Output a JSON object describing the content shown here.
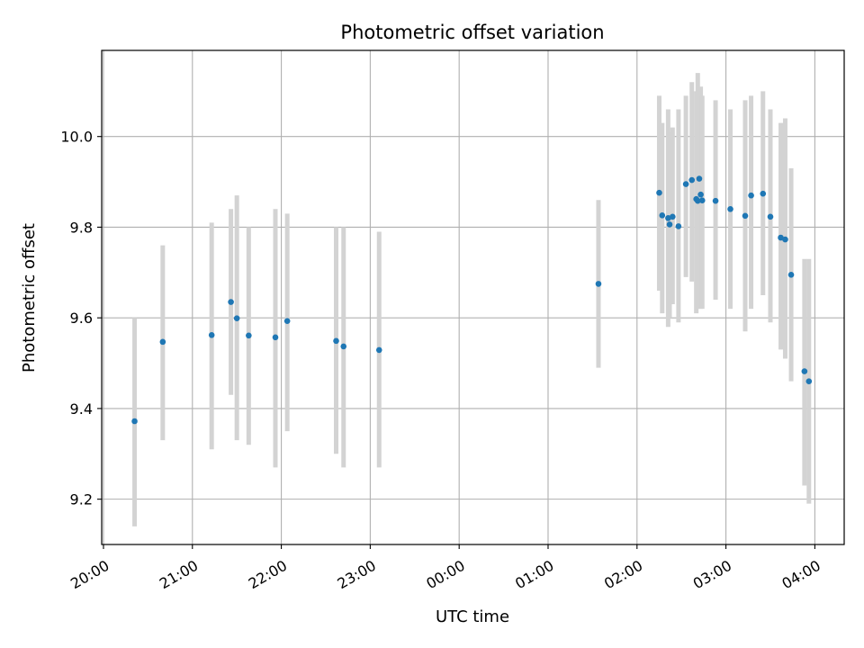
{
  "chart_data": {
    "type": "scatter",
    "title": "Photometric offset variation",
    "xlabel": "UTC time",
    "ylabel": "Photometric offset",
    "grid": true,
    "legend": "none",
    "x_tick_labels": [
      "20:00",
      "21:00",
      "22:00",
      "23:00",
      "00:00",
      "01:00",
      "02:00",
      "03:00",
      "04:00"
    ],
    "x_tick_hours": [
      20,
      21,
      22,
      23,
      24,
      25,
      26,
      27,
      28
    ],
    "xlim_hours": [
      19.98,
      28.33
    ],
    "y_ticks": [
      9.2,
      9.4,
      9.6,
      9.8,
      10.0
    ],
    "y_tick_labels": [
      "9.2",
      "9.4",
      "9.6",
      "9.8",
      "10.0"
    ],
    "ylim": [
      9.1,
      10.19
    ],
    "colors": {
      "points": "#1f77b4",
      "errorbars": "#d3d3d3",
      "grid": "#b0b0b0"
    },
    "points": [
      {
        "t": "20:21",
        "y": 9.372,
        "lo": 9.14,
        "hi": 9.6
      },
      {
        "t": "20:40",
        "y": 9.547,
        "lo": 9.33,
        "hi": 9.76
      },
      {
        "t": "21:13",
        "y": 9.562,
        "lo": 9.31,
        "hi": 9.81
      },
      {
        "t": "21:26",
        "y": 9.635,
        "lo": 9.43,
        "hi": 9.84
      },
      {
        "t": "21:30",
        "y": 9.599,
        "lo": 9.33,
        "hi": 9.87
      },
      {
        "t": "21:38",
        "y": 9.561,
        "lo": 9.32,
        "hi": 9.8
      },
      {
        "t": "21:56",
        "y": 9.557,
        "lo": 9.27,
        "hi": 9.84
      },
      {
        "t": "22:04",
        "y": 9.593,
        "lo": 9.35,
        "hi": 9.83
      },
      {
        "t": "22:37",
        "y": 9.549,
        "lo": 9.3,
        "hi": 9.8
      },
      {
        "t": "22:42",
        "y": 9.537,
        "lo": 9.27,
        "hi": 9.8
      },
      {
        "t": "23:06",
        "y": 9.529,
        "lo": 9.27,
        "hi": 9.79
      },
      {
        "t": "01:34",
        "y": 9.675,
        "lo": 9.49,
        "hi": 9.86
      },
      {
        "t": "02:15",
        "y": 9.876,
        "lo": 9.66,
        "hi": 10.09
      },
      {
        "t": "02:17",
        "y": 9.826,
        "lo": 9.61,
        "hi": 10.03
      },
      {
        "t": "02:21",
        "y": 9.82,
        "lo": 9.58,
        "hi": 10.06
      },
      {
        "t": "02:22",
        "y": 9.806,
        "lo": 9.6,
        "hi": 10.01
      },
      {
        "t": "02:24",
        "y": 9.823,
        "lo": 9.63,
        "hi": 10.02
      },
      {
        "t": "02:28",
        "y": 9.802,
        "lo": 9.59,
        "hi": 10.06
      },
      {
        "t": "02:33",
        "y": 9.895,
        "lo": 9.69,
        "hi": 10.09
      },
      {
        "t": "02:37",
        "y": 9.904,
        "lo": 9.68,
        "hi": 10.12
      },
      {
        "t": "02:40",
        "y": 9.862,
        "lo": 9.61,
        "hi": 10.1
      },
      {
        "t": "02:41",
        "y": 9.858,
        "lo": 9.62,
        "hi": 10.14
      },
      {
        "t": "02:42",
        "y": 9.907,
        "lo": 9.63,
        "hi": 10.1
      },
      {
        "t": "02:43",
        "y": 9.872,
        "lo": 9.62,
        "hi": 10.11
      },
      {
        "t": "02:44",
        "y": 9.859,
        "lo": 9.62,
        "hi": 10.09
      },
      {
        "t": "02:53",
        "y": 9.858,
        "lo": 9.64,
        "hi": 10.08
      },
      {
        "t": "03:03",
        "y": 9.84,
        "lo": 9.62,
        "hi": 10.06
      },
      {
        "t": "03:13",
        "y": 9.825,
        "lo": 9.57,
        "hi": 10.08
      },
      {
        "t": "03:17",
        "y": 9.87,
        "lo": 9.62,
        "hi": 10.09
      },
      {
        "t": "03:25",
        "y": 9.874,
        "lo": 9.65,
        "hi": 10.1
      },
      {
        "t": "03:30",
        "y": 9.823,
        "lo": 9.59,
        "hi": 10.06
      },
      {
        "t": "03:37",
        "y": 9.777,
        "lo": 9.53,
        "hi": 10.03
      },
      {
        "t": "03:40",
        "y": 9.773,
        "lo": 9.51,
        "hi": 10.04
      },
      {
        "t": "03:44",
        "y": 9.695,
        "lo": 9.46,
        "hi": 9.93
      },
      {
        "t": "03:53",
        "y": 9.482,
        "lo": 9.23,
        "hi": 9.73
      },
      {
        "t": "03:56",
        "y": 9.46,
        "lo": 9.19,
        "hi": 9.73
      }
    ]
  }
}
